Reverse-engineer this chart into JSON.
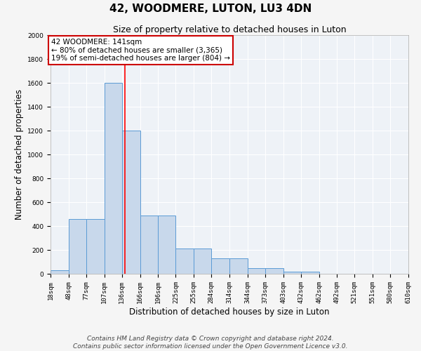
{
  "title": "42, WOODMERE, LUTON, LU3 4DN",
  "subtitle": "Size of property relative to detached houses in Luton",
  "xlabel": "Distribution of detached houses by size in Luton",
  "ylabel": "Number of detached properties",
  "bar_color": "#c8d8eb",
  "bar_edge_color": "#5b9bd5",
  "background_color": "#eef2f7",
  "grid_color": "#ffffff",
  "bin_edges": [
    18,
    48,
    77,
    107,
    136,
    166,
    196,
    225,
    255,
    284,
    314,
    344,
    373,
    403,
    432,
    462,
    492,
    521,
    551,
    580,
    610
  ],
  "bar_heights": [
    30,
    460,
    460,
    1600,
    1200,
    490,
    490,
    210,
    210,
    130,
    130,
    45,
    45,
    20,
    20,
    0,
    0,
    0,
    0,
    0
  ],
  "red_line_x": 141,
  "annotation_text": "42 WOODMERE: 141sqm\n← 80% of detached houses are smaller (3,365)\n19% of semi-detached houses are larger (804) →",
  "annotation_box_color": "#ffffff",
  "annotation_box_edge_color": "#cc0000",
  "ylim": [
    0,
    2000
  ],
  "yticks": [
    0,
    200,
    400,
    600,
    800,
    1000,
    1200,
    1400,
    1600,
    1800,
    2000
  ],
  "tick_labels": [
    "18sqm",
    "48sqm",
    "77sqm",
    "107sqm",
    "136sqm",
    "166sqm",
    "196sqm",
    "225sqm",
    "255sqm",
    "284sqm",
    "314sqm",
    "344sqm",
    "373sqm",
    "403sqm",
    "432sqm",
    "462sqm",
    "492sqm",
    "521sqm",
    "551sqm",
    "580sqm",
    "610sqm"
  ],
  "footer_text": "Contains HM Land Registry data © Crown copyright and database right 2024.\nContains public sector information licensed under the Open Government Licence v3.0.",
  "annotation_fontsize": 7.5,
  "title_fontsize": 11,
  "subtitle_fontsize": 9,
  "axis_label_fontsize": 8.5,
  "tick_fontsize": 6.5,
  "footer_fontsize": 6.5
}
